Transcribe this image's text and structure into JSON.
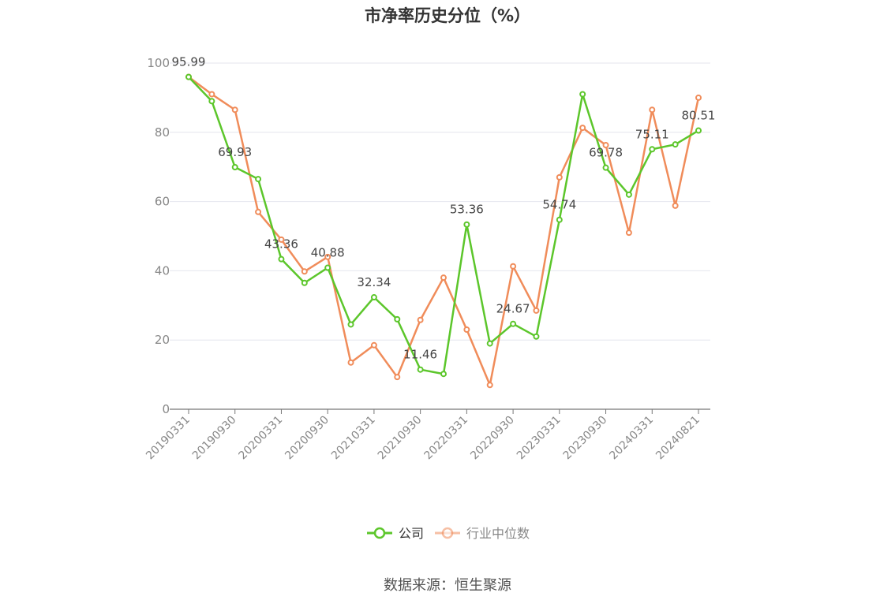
{
  "chart_data": {
    "type": "line",
    "title": "市净率历史分位（%）",
    "xlabel": "",
    "ylabel": "",
    "ylim": [
      0,
      100
    ],
    "yticks": [
      0,
      20,
      40,
      60,
      80,
      100
    ],
    "x": [
      "20190331",
      "20190630",
      "20190930",
      "20191231",
      "20200331",
      "20200630",
      "20200930",
      "20201231",
      "20210331",
      "20210630",
      "20210930",
      "20211231",
      "20220331",
      "20220630",
      "20220930",
      "20221231",
      "20230331",
      "20230630",
      "20230930",
      "20231231",
      "20240331",
      "20240630",
      "20240821"
    ],
    "xtick_labels": [
      "20190331",
      "20190930",
      "20200331",
      "20200930",
      "20210331",
      "20210930",
      "20220331",
      "20220930",
      "20230331",
      "20230930",
      "20240331",
      "20240821"
    ],
    "grid": true,
    "legend_position": "bottom",
    "series": [
      {
        "name": "公司",
        "color": "#5cc62b",
        "values": [
          95.99,
          89.0,
          69.93,
          66.5,
          43.36,
          36.5,
          40.88,
          24.5,
          32.34,
          26.0,
          11.46,
          10.2,
          53.36,
          19.0,
          24.67,
          21.0,
          54.74,
          91.0,
          69.78,
          62.0,
          75.11,
          76.5,
          80.51
        ],
        "labels": {
          "0": "95.99",
          "2": "69.93",
          "4": "43.36",
          "6": "40.88",
          "8": "32.34",
          "10": "11.46",
          "12": "53.36",
          "14": "24.67",
          "16": "54.74",
          "18": "69.78",
          "20": "75.11",
          "22": "80.51"
        }
      },
      {
        "name": "行业中位数",
        "color": "#f08c5a",
        "values": [
          96.0,
          91.0,
          86.5,
          57.0,
          49.0,
          39.8,
          44.0,
          13.5,
          18.5,
          9.3,
          25.8,
          38.0,
          23.0,
          7.0,
          41.3,
          28.5,
          67.0,
          81.3,
          76.3,
          51.0,
          86.5,
          58.8,
          90.0
        ]
      }
    ]
  },
  "source_text": "数据来源：恒生聚源"
}
